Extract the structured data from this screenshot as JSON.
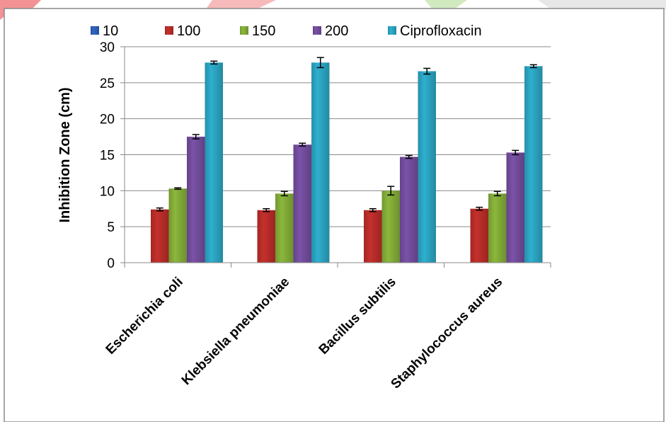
{
  "chart_data": {
    "type": "bar",
    "title": "",
    "xlabel": "",
    "ylabel": "Inhibition Zone (cm)",
    "ylim": [
      0,
      30
    ],
    "yticks": [
      0,
      5,
      10,
      15,
      20,
      25,
      30
    ],
    "grid": true,
    "legend_position": "top",
    "categories": [
      "Escherichia coli",
      "Klebsiella pneumoniae",
      "Bacillus subtilis",
      "Staphylococcus aureus"
    ],
    "series": [
      {
        "name": "10",
        "color": "#2f66c4",
        "values": [
          0,
          0,
          0,
          0
        ],
        "errors": [
          0,
          0,
          0,
          0
        ]
      },
      {
        "name": "100",
        "color": "#c6302c",
        "values": [
          7.4,
          7.3,
          7.3,
          7.5
        ],
        "errors": [
          0.2,
          0.2,
          0.2,
          0.2
        ]
      },
      {
        "name": "150",
        "color": "#8cb83c",
        "values": [
          10.3,
          9.6,
          10.0,
          9.6
        ],
        "errors": [
          0.1,
          0.3,
          0.6,
          0.3
        ]
      },
      {
        "name": "200",
        "color": "#7b52a8",
        "values": [
          17.5,
          16.4,
          14.7,
          15.3
        ],
        "errors": [
          0.3,
          0.2,
          0.2,
          0.3
        ]
      },
      {
        "name": "Ciprofloxacin",
        "color": "#2eb0cf",
        "values": [
          27.8,
          27.8,
          26.6,
          27.3
        ],
        "errors": [
          0.2,
          0.7,
          0.4,
          0.2
        ]
      }
    ]
  }
}
